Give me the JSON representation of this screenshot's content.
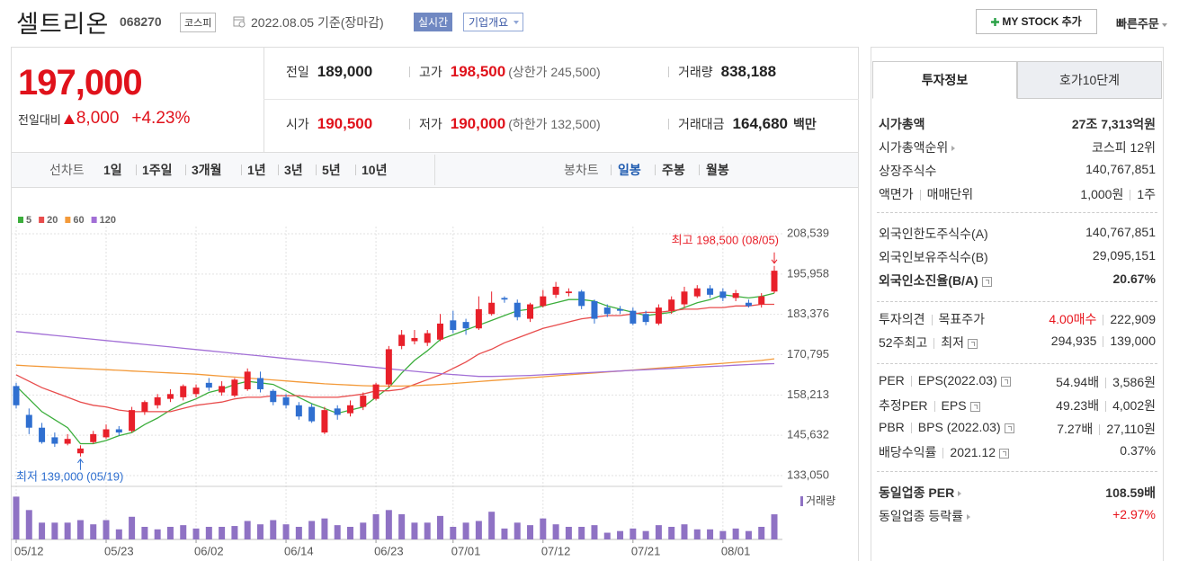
{
  "header": {
    "name": "셀트리온",
    "code": "068270",
    "market": "코스피",
    "date": "2022.08.05 기준(장마감)",
    "realtime": "실시간",
    "company": "기업개요",
    "mystock": "MY STOCK 추가",
    "quick_order": "빠른주문"
  },
  "quote": {
    "price": "197,000",
    "change_label": "전일대비",
    "change": "8,000",
    "change_pct": "+4.23%",
    "items": [
      {
        "label": "전일",
        "value": "189,000"
      },
      {
        "label": "고가",
        "value": "198,500",
        "note": "(상한가 245,500)",
        "highlight": true
      },
      {
        "label": "거래량",
        "value": "838,188"
      },
      {
        "label": "시가",
        "value": "190,500",
        "highlight": true
      },
      {
        "label": "저가",
        "value": "190,000",
        "note": "(하한가 132,500)",
        "highlight": true
      },
      {
        "label": "거래대금",
        "value": "164,680",
        "unit": "백만"
      }
    ]
  },
  "tabs": {
    "line_chart": "선차트",
    "line_periods": [
      "1일",
      "1주일",
      "3개월",
      "1년",
      "3년",
      "5년",
      "10년"
    ],
    "candle_chart": "봉차트",
    "candle_periods": [
      "일봉",
      "주봉",
      "월봉"
    ],
    "active_candle": 0
  },
  "chart_data": {
    "type": "candlestick",
    "up_color": "#e8202a",
    "down_color": "#2f6fd0",
    "grid": true,
    "categories": [
      "05/12",
      null,
      null,
      null,
      null,
      null,
      null,
      "05/23",
      null,
      null,
      null,
      null,
      null,
      null,
      "06/02",
      null,
      null,
      null,
      null,
      null,
      null,
      "06/14",
      null,
      null,
      null,
      null,
      null,
      null,
      "06/23",
      null,
      null,
      null,
      null,
      null,
      "07/01",
      null,
      null,
      null,
      null,
      null,
      null,
      "07/12",
      null,
      null,
      null,
      null,
      null,
      null,
      "07/21",
      null,
      null,
      null,
      null,
      null,
      null,
      "08/01",
      null,
      null,
      null,
      null
    ],
    "open": [
      161000,
      152000,
      148000,
      145000,
      143000,
      140000,
      143500,
      145000,
      147500,
      147000,
      153000,
      155000,
      157000,
      157500,
      158500,
      162000,
      159000,
      158000,
      160000,
      163500,
      159500,
      157500,
      155000,
      154500,
      146500,
      154000,
      152500,
      154500,
      157000,
      161500,
      173500,
      175000,
      174500,
      175500,
      181500,
      181000,
      179000,
      183500,
      188500,
      187000,
      182000,
      186000,
      189500,
      190000,
      190500,
      187500,
      185500,
      185000,
      184500,
      183500,
      180500,
      184500,
      186500,
      189000,
      191500,
      190500,
      188500,
      187000,
      186500,
      190500
    ],
    "high": [
      162000,
      154000,
      149500,
      146500,
      146000,
      142500,
      147000,
      149000,
      148500,
      154500,
      156500,
      158500,
      160000,
      161500,
      161500,
      163500,
      162500,
      163500,
      166500,
      165500,
      160000,
      158500,
      156000,
      155500,
      154500,
      155000,
      156500,
      159000,
      162000,
      173500,
      178500,
      178500,
      178500,
      183500,
      184500,
      182000,
      189000,
      190500,
      189000,
      188000,
      187000,
      191000,
      193500,
      191500,
      191000,
      188000,
      186500,
      186000,
      185500,
      184500,
      186500,
      189000,
      192000,
      192500,
      192500,
      191500,
      191000,
      188000,
      190000,
      198500
    ],
    "low": [
      154000,
      146000,
      143000,
      142000,
      142500,
      139000,
      143000,
      144500,
      145500,
      146500,
      152000,
      154000,
      156000,
      156500,
      157500,
      159500,
      158000,
      157500,
      159500,
      159000,
      155000,
      154000,
      150500,
      149500,
      146000,
      150500,
      151500,
      153500,
      156500,
      160500,
      172500,
      174000,
      173500,
      175000,
      177500,
      177000,
      178500,
      183000,
      187000,
      181500,
      181000,
      185500,
      188500,
      189000,
      185000,
      180500,
      182500,
      183500,
      180000,
      180000,
      180000,
      183500,
      185500,
      188500,
      188500,
      187500,
      187500,
      185500,
      185500,
      190000
    ],
    "close": [
      155000,
      148000,
      143500,
      143000,
      144500,
      141500,
      146000,
      147500,
      146500,
      153500,
      156000,
      157500,
      158500,
      161000,
      160500,
      160500,
      161000,
      163000,
      165500,
      160000,
      156000,
      155000,
      151500,
      150000,
      153500,
      152000,
      155000,
      158000,
      161500,
      172500,
      177000,
      176000,
      177500,
      180500,
      178500,
      179000,
      185000,
      187000,
      188000,
      182500,
      186500,
      189000,
      192000,
      190500,
      186000,
      182000,
      183500,
      184500,
      180500,
      181000,
      185500,
      188000,
      190500,
      191500,
      189500,
      188500,
      190000,
      186000,
      189000,
      197000
    ],
    "moving_averages": [
      {
        "name": "5",
        "color": "#3cae3c",
        "values": [
          161000,
          157000,
          153000,
          150500,
          148000,
          143000,
          143000,
          144000,
          145500,
          146500,
          149000,
          151000,
          153500,
          155500,
          157000,
          159000,
          160000,
          161500,
          162500,
          162000,
          161500,
          159500,
          157500,
          155500,
          154000,
          152500,
          153500,
          154500,
          157500,
          160500,
          165000,
          169000,
          172000,
          175500,
          177000,
          178500,
          180000,
          181500,
          183000,
          184500,
          185000,
          186000,
          187000,
          188000,
          188000,
          187500,
          186000,
          185000,
          184000,
          183000,
          183500,
          184000,
          185500,
          187000,
          188000,
          189500,
          189000,
          188500,
          189000,
          190000
        ]
      },
      {
        "name": "20",
        "color": "#e84c4c",
        "values": [
          164500,
          162500,
          160500,
          159000,
          157500,
          156000,
          155000,
          154500,
          153500,
          153000,
          153000,
          153000,
          153000,
          154000,
          155000,
          155500,
          156000,
          157000,
          157500,
          157500,
          158000,
          158000,
          158000,
          157500,
          157500,
          157500,
          158000,
          158500,
          159500,
          159500,
          160000,
          161500,
          163000,
          164500,
          166500,
          168500,
          171000,
          172500,
          174500,
          176000,
          177500,
          179000,
          180000,
          181000,
          182000,
          182500,
          183000,
          183000,
          183500,
          184000,
          184000,
          184500,
          185000,
          185000,
          185500,
          185500,
          186000,
          186000,
          186500,
          186500
        ]
      },
      {
        "name": "60",
        "color": "#f39a3a",
        "values": [
          167500,
          167300,
          167100,
          166900,
          166700,
          166500,
          166300,
          166100,
          165900,
          165700,
          165500,
          165300,
          165100,
          164900,
          164700,
          164400,
          164100,
          163800,
          163500,
          163200,
          162900,
          162600,
          162300,
          162000,
          161700,
          161500,
          161300,
          161100,
          161000,
          161000,
          161000,
          161100,
          161300,
          161500,
          161800,
          162100,
          162400,
          162700,
          163000,
          163300,
          163600,
          163900,
          164200,
          164500,
          164800,
          165100,
          165400,
          165700,
          166000,
          166300,
          166600,
          166900,
          167200,
          167500,
          167800,
          168100,
          168400,
          168700,
          169000,
          169500
        ]
      },
      {
        "name": "120",
        "color": "#a26fd6",
        "values": [
          178000,
          177600,
          177200,
          176800,
          176400,
          176000,
          175600,
          175200,
          174800,
          174400,
          174000,
          173600,
          173200,
          172800,
          172400,
          172000,
          171600,
          171200,
          170800,
          170400,
          170000,
          169600,
          169200,
          168800,
          168400,
          168000,
          167600,
          167200,
          166800,
          166400,
          166000,
          165600,
          165200,
          164900,
          164600,
          164300,
          164000,
          164000,
          164100,
          164200,
          164300,
          164500,
          164700,
          164900,
          165100,
          165300,
          165500,
          165700,
          165900,
          166100,
          166300,
          166500,
          166700,
          166900,
          167100,
          167300,
          167500,
          167700,
          167900,
          168000
        ]
      }
    ],
    "ylim": [
      133050,
      208539
    ],
    "yticks": [
      {
        "value": 208539,
        "label": "208,539"
      },
      {
        "value": 195958,
        "label": "195,958"
      },
      {
        "value": 183376,
        "label": "183,376"
      },
      {
        "value": 170795,
        "label": "170,795"
      },
      {
        "value": 158213,
        "label": "158,213"
      },
      {
        "value": 145632,
        "label": "145,632"
      },
      {
        "value": 133050,
        "label": "133,050"
      }
    ],
    "annotations": {
      "high": "최고 198,500 (08/05)",
      "low": "최저 139,000 (05/19)",
      "high_color": "#e8202a",
      "low_color": "#2f6fd0"
    },
    "volume": {
      "name": "거래량",
      "color": "#8f72c4",
      "ylim": [
        0,
        1680000
      ],
      "values": [
        1428000,
        980000,
        560000,
        560000,
        560000,
        644000,
        504000,
        644000,
        336000,
        756000,
        420000,
        336000,
        420000,
        476000,
        364000,
        420000,
        420000,
        448000,
        616000,
        504000,
        644000,
        504000,
        420000,
        616000,
        700000,
        476000,
        420000,
        560000,
        840000,
        980000,
        840000,
        560000,
        560000,
        784000,
        420000,
        560000,
        616000,
        924000,
        364000,
        560000,
        476000,
        700000,
        504000,
        420000,
        420000,
        476000,
        224000,
        280000,
        364000,
        280000,
        476000,
        420000,
        504000,
        336000,
        336000,
        280000,
        364000,
        280000,
        420000,
        838188
      ]
    }
  },
  "info": {
    "tabs": [
      "투자정보",
      "호가10단계"
    ],
    "groups": [
      [
        {
          "labels": [
            "시가총액"
          ],
          "values": [
            "27조 7,313억원"
          ],
          "bold": true
        },
        {
          "labels": [
            "시가총액순위"
          ],
          "arrow": true,
          "values": [
            "코스피 12위"
          ]
        },
        {
          "labels": [
            "상장주식수"
          ],
          "values": [
            "140,767,851"
          ]
        },
        {
          "labels": [
            "액면가",
            "매매단위"
          ],
          "values": [
            "1,000원",
            "1주"
          ]
        }
      ],
      [
        {
          "labels": [
            "외국인한도주식수(A)"
          ],
          "values": [
            "140,767,851"
          ]
        },
        {
          "labels": [
            "외국인보유주식수(B)"
          ],
          "values": [
            "29,095,151"
          ]
        },
        {
          "labels": [
            "외국인소진율(B/A)"
          ],
          "help": true,
          "bold": true,
          "values": [
            "20.67%"
          ]
        }
      ],
      [
        {
          "labels": [
            "투자의견",
            "목표주가"
          ],
          "values": [
            "4.00매수",
            "222,909"
          ],
          "value_colors": [
            "#e8141c",
            "#333333"
          ]
        },
        {
          "labels": [
            "52주최고",
            "최저"
          ],
          "help": true,
          "values": [
            "294,935",
            "139,000"
          ]
        }
      ],
      [
        {
          "labels": [
            "PER",
            "EPS(2022.03)"
          ],
          "help": true,
          "values": [
            "54.94배",
            "3,586원"
          ]
        },
        {
          "labels": [
            "추정PER",
            "EPS"
          ],
          "help": true,
          "values": [
            "49.23배",
            "4,002원"
          ]
        },
        {
          "labels": [
            "PBR",
            "BPS (2022.03)"
          ],
          "help": true,
          "values": [
            "7.27배",
            "27,110원"
          ]
        },
        {
          "labels": [
            "배당수익률",
            "2021.12"
          ],
          "help": true,
          "values": [
            "0.37%"
          ]
        }
      ],
      [
        {
          "labels": [
            "동일업종 PER"
          ],
          "arrow": true,
          "bold": true,
          "values": [
            "108.59배"
          ]
        },
        {
          "labels": [
            "동일업종 등락률"
          ],
          "arrow": true,
          "values": [
            "+2.97%"
          ],
          "value_colors": [
            "#e8141c"
          ]
        }
      ]
    ]
  }
}
